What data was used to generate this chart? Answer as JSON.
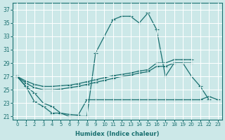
{
  "xlabel": "Humidex (Indice chaleur)",
  "bg_color": "#cce8e8",
  "line_color": "#1a7070",
  "grid_color": "#ffffff",
  "xlim": [
    -0.5,
    23.5
  ],
  "ylim": [
    20.5,
    38.0
  ],
  "xticks": [
    0,
    1,
    2,
    3,
    4,
    5,
    6,
    7,
    8,
    9,
    10,
    11,
    12,
    13,
    14,
    15,
    16,
    17,
    18,
    19,
    20,
    21,
    22,
    23
  ],
  "yticks": [
    21,
    23,
    25,
    27,
    29,
    31,
    33,
    35,
    37
  ],
  "line1_x": [
    0,
    1,
    2,
    3,
    4,
    5,
    6,
    7,
    8,
    9,
    10,
    11,
    12,
    13,
    14,
    15,
    16,
    17,
    18,
    19,
    20,
    21,
    22
  ],
  "line1_y": [
    27,
    25.5,
    24.5,
    23.0,
    22.5,
    21.5,
    21.0,
    21.0,
    21.0,
    30.5,
    33.0,
    35.5,
    36.0,
    36.0,
    35.0,
    36.5,
    34.0,
    27.0,
    29.0,
    29.0,
    27.0,
    25.5,
    23.5
  ],
  "line2a_x": [
    0,
    1,
    2,
    3,
    4,
    5,
    6,
    7,
    8,
    9,
    10,
    11,
    12,
    13,
    14,
    15,
    16,
    17,
    18,
    19,
    20
  ],
  "line2a_y": [
    27.0,
    26.3,
    25.8,
    25.5,
    25.5,
    25.6,
    25.7,
    25.9,
    26.2,
    26.5,
    26.8,
    27.1,
    27.3,
    27.5,
    27.8,
    28.0,
    29.0,
    29.0,
    29.5,
    29.5,
    29.5
  ],
  "line2b_x": [
    0,
    1,
    2,
    3,
    4,
    5,
    6,
    7,
    8,
    9,
    10,
    11,
    12,
    13,
    14,
    15,
    16,
    17,
    18,
    19,
    20
  ],
  "line2b_y": [
    27.0,
    26.0,
    25.3,
    25.0,
    25.0,
    25.1,
    25.3,
    25.5,
    25.8,
    26.1,
    26.4,
    26.7,
    27.0,
    27.2,
    27.5,
    27.7,
    28.5,
    28.5,
    29.0,
    29.0,
    29.0
  ],
  "line3_x": [
    0,
    1,
    2,
    3,
    4,
    5,
    6,
    7,
    8,
    9,
    10,
    11,
    12,
    13,
    14,
    15,
    16,
    17,
    18,
    19,
    20,
    21,
    22,
    23
  ],
  "line3_y": [
    27.0,
    25.5,
    23.2,
    22.5,
    21.5,
    21.5,
    21.3,
    21.2,
    23.5,
    23.5,
    23.5,
    23.5,
    23.5,
    23.5,
    23.5,
    23.5,
    23.5,
    23.5,
    23.5,
    23.5,
    23.5,
    23.5,
    24.0,
    23.5
  ]
}
